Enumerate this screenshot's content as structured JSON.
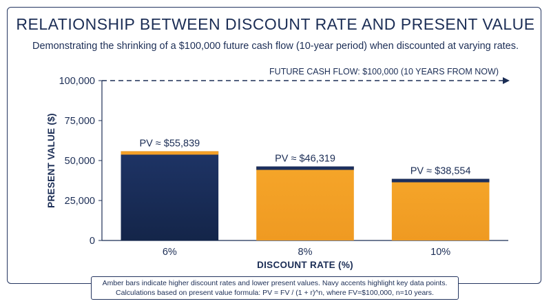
{
  "title": "RELATIONSHIP BETWEEN DISCOUNT RATE AND PRESENT VALUE",
  "subtitle": "Demonstrating the shrinking of a $100,000 future cash flow (10-year period) when discounted at varying rates.",
  "footnote": {
    "line1": "Amber bars indicate higher discount rates and lower present values. Navy accents highlight key data points.",
    "line2": "Calculations based on present value formula: PV = FV / (1 + r)^n, where FV=$100,000, n=10 years."
  },
  "colors": {
    "navy": "#1b2f5e",
    "amber": "#f3a028",
    "text": "#1b2d55"
  },
  "chart_data": {
    "type": "bar",
    "categories": [
      "6%",
      "8%",
      "10%"
    ],
    "values": [
      55839,
      46319,
      38554
    ],
    "data_labels": [
      "PV ≈ $55,839",
      "PV ≈ $46,319",
      "PV ≈ $38,554"
    ],
    "bar_fill": [
      "navy",
      "amber",
      "amber"
    ],
    "bar_cap": [
      "amber",
      "navy",
      "navy"
    ],
    "xlabel": "DISCOUNT RATE (%)",
    "ylabel": "PRESENT VALUE ($)",
    "ylim": [
      0,
      100000
    ],
    "yticks": [
      0,
      25000,
      50000,
      75000,
      100000
    ],
    "ytick_labels": [
      "0",
      "25,000",
      "50,000",
      "75,000",
      "100,000"
    ],
    "reference_line": {
      "value": 100000,
      "label": "FUTURE CASH FLOW: $100,000 (10 YEARS FROM NOW)",
      "style": "dashed-arrow"
    },
    "grid": false
  }
}
